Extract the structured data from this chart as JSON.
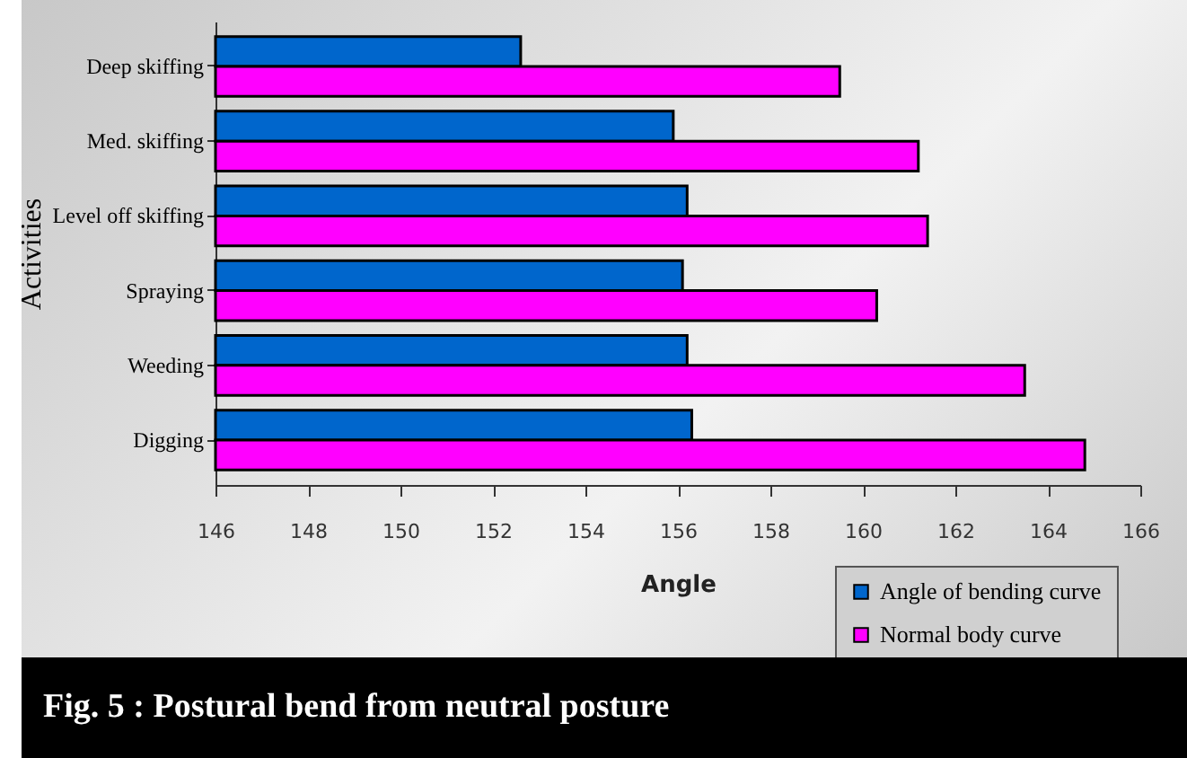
{
  "chart_data": {
    "type": "bar",
    "orientation": "horizontal",
    "title": "Fig. 5 :  Postural bend from neutral posture",
    "xlabel": "Angle",
    "ylabel": "Activities",
    "categories": [
      "Deep skiffing",
      "Med. skiffing",
      "Level off skiffing",
      "Spraying",
      "Weeding",
      "Digging"
    ],
    "series": [
      {
        "name": "Angle of bending curve",
        "color": "#0066cc",
        "values": [
          152.6,
          155.9,
          156.2,
          156.1,
          156.2,
          156.3
        ]
      },
      {
        "name": "Normal body curve",
        "color": "#ff00ff",
        "values": [
          159.5,
          161.2,
          161.4,
          160.3,
          163.5,
          164.8
        ]
      }
    ],
    "xlim": [
      146,
      166
    ],
    "xticks": [
      146,
      148,
      150,
      152,
      154,
      156,
      158,
      160,
      162,
      164,
      166
    ],
    "legend": "bottom right"
  }
}
